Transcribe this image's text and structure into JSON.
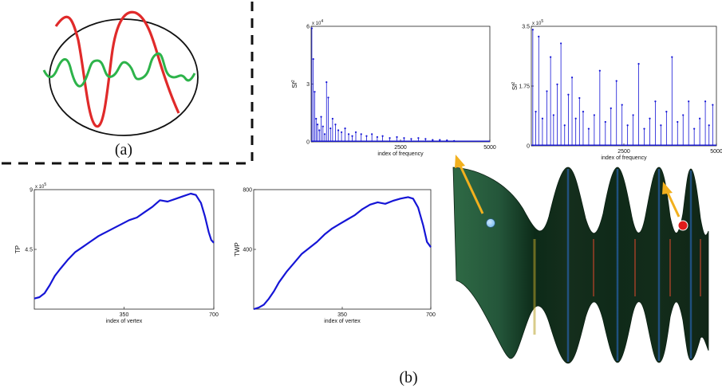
{
  "figure": {
    "panel_a_label": "(a)",
    "panel_b_label": "(b)"
  },
  "colors": {
    "plot_line": "#1515d6",
    "wave_red": "#e02a2a",
    "wave_green": "#2db34a",
    "arrow": "#f2b01e",
    "surface_dark": "#0c2a18",
    "surface_light": "#2f6a45",
    "point_blue": "#7fc0ef",
    "point_red": "#e11b1b"
  },
  "chart_data": [
    {
      "id": "sf_low",
      "type": "stem",
      "title": "",
      "xlabel": "index of frequency",
      "ylabel": "Sf",
      "ylabel_exponent": "2",
      "multiplier": "x 10",
      "multiplier_exponent": "4",
      "xlim": [
        0,
        5000
      ],
      "ylim": [
        0,
        6
      ],
      "xticks": [
        "2500",
        "5000"
      ],
      "yticks": [
        "6",
        "3",
        "0"
      ],
      "x": [
        20,
        60,
        100,
        140,
        180,
        230,
        280,
        330,
        380,
        430,
        480,
        540,
        600,
        680,
        760,
        850,
        950,
        1050,
        1150,
        1250,
        1400,
        1550,
        1700,
        1850,
        2000,
        2200,
        2400,
        2600,
        2800,
        3000,
        3200,
        3400,
        3600,
        3800,
        4000
      ],
      "values": [
        5.9,
        4.3,
        2.6,
        1.2,
        0.9,
        0.6,
        1.3,
        0.8,
        0.4,
        3.1,
        2.3,
        0.7,
        1.2,
        0.9,
        0.6,
        0.5,
        0.7,
        0.4,
        0.3,
        0.5,
        0.4,
        0.3,
        0.4,
        0.25,
        0.3,
        0.2,
        0.25,
        0.2,
        0.15,
        0.2,
        0.15,
        0.1,
        0.1,
        0.08,
        0.05
      ]
    },
    {
      "id": "sf_high",
      "type": "stem",
      "title": "",
      "xlabel": "index of frequency",
      "ylabel": "Sf",
      "ylabel_exponent": "2",
      "multiplier": "x 10",
      "multiplier_exponent": "5",
      "xlim": [
        0,
        5000
      ],
      "ylim": [
        0,
        3.5
      ],
      "xticks": [
        "2500",
        "5000"
      ],
      "yticks": [
        "3.5",
        "1.75",
        "0"
      ],
      "x": [
        40,
        120,
        200,
        300,
        420,
        520,
        600,
        700,
        800,
        900,
        1000,
        1100,
        1200,
        1300,
        1400,
        1550,
        1700,
        1850,
        2000,
        2150,
        2300,
        2450,
        2600,
        2750,
        2900,
        3050,
        3200,
        3350,
        3500,
        3650,
        3800,
        3950,
        4100,
        4250,
        4400,
        4550,
        4700,
        4800,
        4900
      ],
      "values": [
        3.4,
        1.0,
        3.2,
        0.8,
        1.6,
        2.6,
        0.9,
        1.8,
        3.0,
        0.6,
        1.5,
        2.0,
        0.8,
        1.4,
        1.0,
        0.5,
        0.9,
        2.2,
        0.7,
        1.1,
        1.9,
        1.2,
        0.6,
        0.9,
        2.4,
        0.5,
        0.8,
        1.3,
        0.6,
        1.0,
        2.6,
        0.7,
        0.9,
        1.3,
        0.5,
        0.8,
        1.3,
        0.6,
        1.2
      ]
    },
    {
      "id": "tp",
      "type": "line",
      "title": "",
      "xlabel": "index of vertex",
      "ylabel": "TP",
      "multiplier": "x 10",
      "multiplier_exponent": "5",
      "xlim": [
        0,
        700
      ],
      "ylim": [
        0,
        9
      ],
      "xticks": [
        "350",
        "700"
      ],
      "yticks": [
        "9",
        "4.5"
      ],
      "x": [
        0,
        20,
        40,
        60,
        80,
        100,
        130,
        160,
        190,
        220,
        250,
        280,
        310,
        340,
        370,
        400,
        430,
        460,
        490,
        520,
        550,
        580,
        610,
        630,
        650,
        665,
        680,
        690,
        700
      ],
      "values": [
        0.8,
        0.9,
        1.2,
        1.8,
        2.5,
        3.0,
        3.7,
        4.3,
        4.7,
        5.1,
        5.5,
        5.8,
        6.1,
        6.4,
        6.7,
        6.9,
        7.3,
        7.7,
        8.2,
        8.1,
        8.3,
        8.5,
        8.7,
        8.6,
        8.0,
        7.0,
        5.8,
        5.2,
        5.0
      ]
    },
    {
      "id": "twp",
      "type": "line",
      "title": "",
      "xlabel": "index of vertex",
      "ylabel": "TWP",
      "xlim": [
        0,
        700
      ],
      "ylim": [
        0,
        800
      ],
      "xticks": [
        "350",
        "700"
      ],
      "yticks": [
        "800",
        "400"
      ],
      "x": [
        0,
        20,
        40,
        60,
        80,
        100,
        130,
        160,
        190,
        220,
        250,
        280,
        310,
        340,
        370,
        400,
        430,
        460,
        490,
        520,
        550,
        580,
        610,
        630,
        650,
        670,
        685,
        700
      ],
      "values": [
        0,
        10,
        30,
        70,
        120,
        180,
        250,
        310,
        370,
        410,
        450,
        500,
        540,
        570,
        600,
        630,
        670,
        700,
        715,
        705,
        725,
        740,
        750,
        740,
        680,
        560,
        450,
        415
      ]
    }
  ]
}
